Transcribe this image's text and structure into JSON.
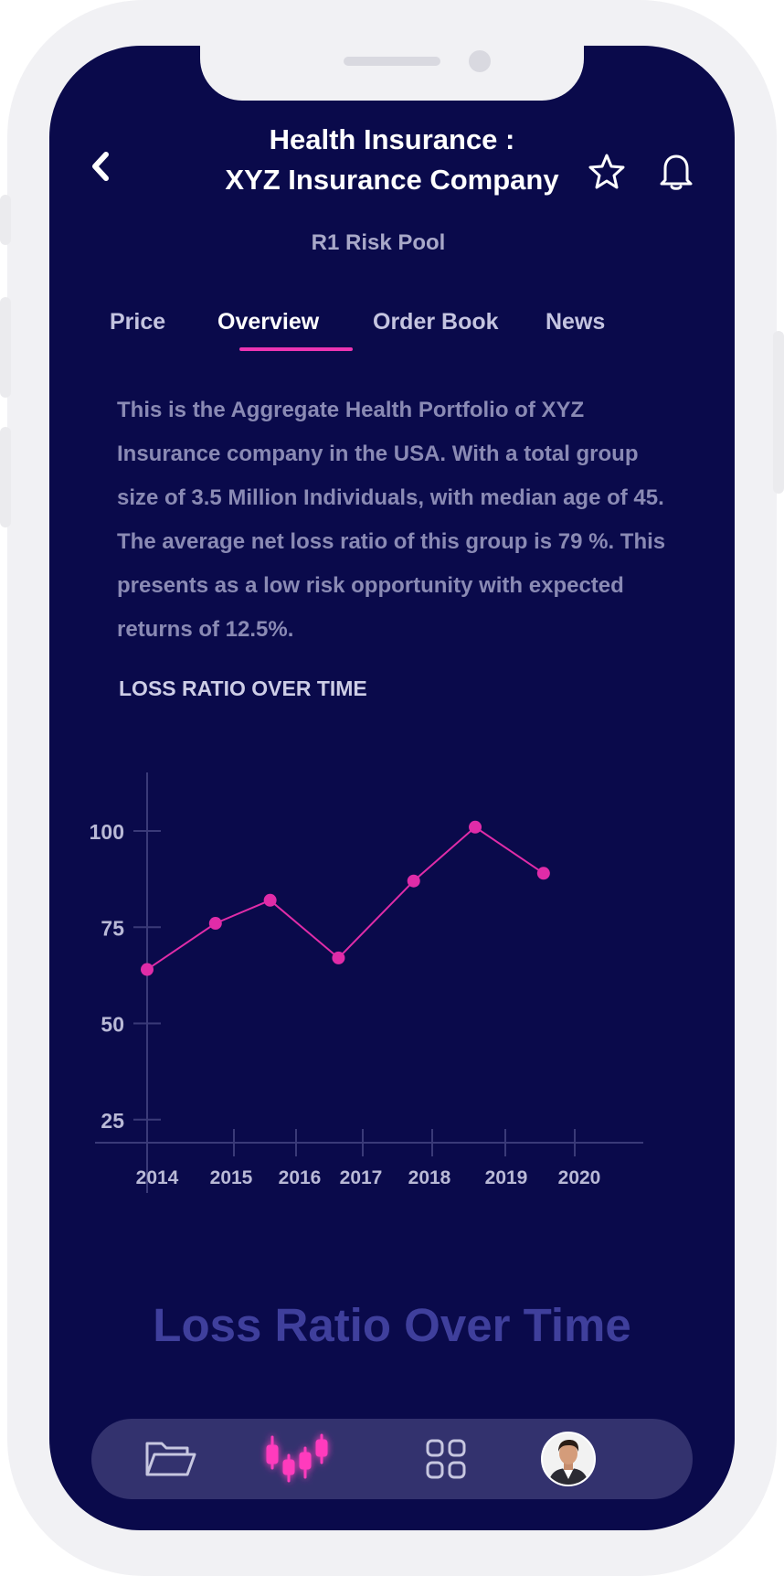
{
  "header": {
    "title_line1": "Health Insurance :",
    "title_line2": "XYZ Insurance Company",
    "subtitle": "R1 Risk Pool"
  },
  "tabs": [
    {
      "label": "Price",
      "active": false
    },
    {
      "label": "Overview",
      "active": true
    },
    {
      "label": "Order Book",
      "active": false
    },
    {
      "label": "News",
      "active": false
    }
  ],
  "description": "This is the Aggregate Health Portfolio of XYZ Insurance company in the USA. With a total group size of 3.5 Million Individuals, with median age of 45. The average net loss ratio of this group is 79 %. This presents as a low risk opportunity with expected returns of 12.5%.",
  "section_title": "LOSS RATIO OVER TIME",
  "chart_caption": "Loss Ratio Over Time",
  "chart_data": {
    "type": "line",
    "title": "LOSS RATIO OVER TIME",
    "x_ticks": [
      "2014",
      "2015",
      "2016",
      "2017",
      "2018",
      "2019",
      "2020"
    ],
    "y_ticks": [
      25,
      50,
      75,
      100
    ],
    "points": [
      {
        "x": 2014.0,
        "y": 64
      },
      {
        "x": 2015.0,
        "y": 76
      },
      {
        "x": 2015.8,
        "y": 82
      },
      {
        "x": 2016.8,
        "y": 67
      },
      {
        "x": 2017.9,
        "y": 87
      },
      {
        "x": 2018.8,
        "y": 101
      },
      {
        "x": 2019.8,
        "y": 89
      }
    ],
    "ylim": [
      5,
      115
    ],
    "line_color": "#e02ca8",
    "grid": false
  },
  "bottom_nav": {
    "items": [
      "folder-icon",
      "candlestick-chart-icon",
      "grid-icon",
      "avatar"
    ],
    "active": "candlestick-chart-icon"
  },
  "colors": {
    "background": "#0a0a4b",
    "accent": "#ec35b2",
    "nav_bg": "#33326e"
  }
}
